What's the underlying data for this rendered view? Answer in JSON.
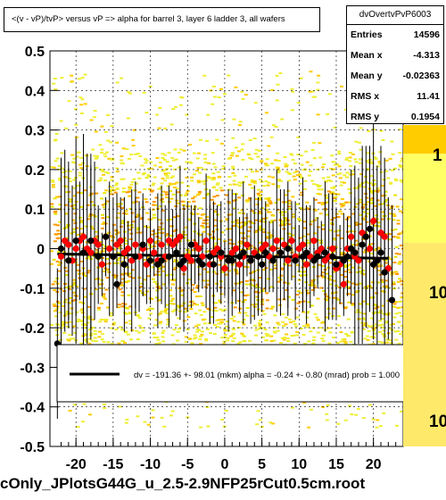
{
  "title": "<(v - vP)/tvP> versus   vP => alpha for barrel 3, layer 6 ladder 3, all wafers",
  "bottom_title": "cOnly_JPlotsG44G_u_2.5-2.9NFP25rCut0.5cm.root",
  "stats": {
    "name": "dvOvertvPvP6003",
    "rows": [
      {
        "key": "Entries",
        "value": "14596"
      },
      {
        "key": "Mean x",
        "value": "-4.313"
      },
      {
        "key": "Mean y",
        "value": "-0.02363"
      },
      {
        "key": "RMS x",
        "value": "11.41"
      },
      {
        "key": "RMS y",
        "value": "0.1954"
      }
    ]
  },
  "legend": {
    "text": "dv = -191.36 +- 98.01 (mkm) alpha =   -0.24 +-  0.80 (mrad) prob = 1.000"
  },
  "colorbar_labels": [
    "1",
    "10",
    "10"
  ],
  "chart_data": {
    "type": "scatter",
    "title": "<(v - vP)/tvP> versus   vP => alpha for barrel 3, layer 6 ladder 3, all wafers",
    "xlim": [
      -23.5,
      24
    ],
    "ylim": [
      -0.5,
      0.5
    ],
    "x_ticks": [
      -20,
      -15,
      -10,
      -5,
      0,
      5,
      10,
      15,
      20
    ],
    "y_ticks": [
      -0.5,
      -0.4,
      -0.3,
      -0.2,
      -0.1,
      0,
      0.1,
      0.2,
      0.3,
      0.4,
      0.5
    ],
    "y_tick_labels": [
      "-0.5",
      "-0.4",
      "-0.3",
      "-0.2",
      "-0.1",
      "0",
      "0.1",
      "0.2",
      "0.3",
      "0.4",
      "0.5"
    ],
    "grid": true,
    "colors": {
      "red": "#ff0000",
      "black": "#000000",
      "fit": "#000000"
    },
    "fit_line": {
      "slope": -0.00024,
      "intercept": -0.019
    },
    "series": [
      {
        "marker": "red",
        "points": [
          [
            -22.0,
            -0.02
          ],
          [
            -21.5,
            0.02
          ],
          [
            -21.0,
            0.01
          ],
          [
            -20.5,
            -0.03
          ],
          [
            -20.0,
            0.0
          ],
          [
            -19.5,
            0.02
          ],
          [
            -19.0,
            0.03
          ],
          [
            -18.5,
            0.0
          ],
          [
            -18.0,
            -0.01
          ],
          [
            -17.5,
            0.02
          ],
          [
            -17.0,
            0.01
          ],
          [
            -16.5,
            -0.04
          ],
          [
            -16.0,
            0.03
          ],
          [
            -15.5,
            0.0
          ],
          [
            -15.0,
            -0.02
          ],
          [
            -14.5,
            0.01
          ],
          [
            -14.0,
            0.02
          ],
          [
            -13.5,
            -0.01
          ],
          [
            -13.0,
            0.0
          ],
          [
            -12.5,
            -0.03
          ],
          [
            -12.0,
            0.01
          ],
          [
            -11.5,
            -0.02
          ],
          [
            -11.0,
            0.0
          ],
          [
            -10.5,
            -0.04
          ],
          [
            -10.0,
            0.02
          ],
          [
            -9.5,
            -0.01
          ],
          [
            -9.0,
            -0.03
          ],
          [
            -8.5,
            0.01
          ],
          [
            -8.0,
            -0.02
          ],
          [
            -7.5,
            0.02
          ],
          [
            -7.0,
            0.01
          ],
          [
            -6.5,
            0.02
          ],
          [
            -6.0,
            0.03
          ],
          [
            -5.5,
            -0.05
          ],
          [
            -5.0,
            -0.02
          ],
          [
            -4.5,
            -0.03
          ],
          [
            -4.0,
            0.01
          ],
          [
            -3.5,
            0.0
          ],
          [
            -3.0,
            -0.02
          ],
          [
            -2.5,
            0.02
          ],
          [
            -2.0,
            -0.04
          ],
          [
            -1.5,
            -0.01
          ],
          [
            -1.0,
            0.0
          ],
          [
            -0.5,
            -0.02
          ],
          [
            0.0,
            -0.05
          ],
          [
            0.5,
            -0.03
          ],
          [
            1.0,
            -0.01
          ],
          [
            1.5,
            0.0
          ],
          [
            2.0,
            -0.04
          ],
          [
            2.5,
            -0.02
          ],
          [
            3.0,
            0.01
          ],
          [
            3.5,
            -0.03
          ],
          [
            4.0,
            -0.01
          ],
          [
            4.5,
            -0.02
          ],
          [
            5.0,
            0.0
          ],
          [
            5.5,
            0.01
          ],
          [
            6.0,
            -0.02
          ],
          [
            6.5,
            0.0
          ],
          [
            7.0,
            0.02
          ],
          [
            7.5,
            -0.01
          ],
          [
            8.0,
            0.01
          ],
          [
            8.5,
            -0.03
          ],
          [
            9.0,
            0.02
          ],
          [
            9.5,
            -0.02
          ],
          [
            10.0,
            0.0
          ],
          [
            10.5,
            0.01
          ],
          [
            11.0,
            -0.04
          ],
          [
            11.5,
            -0.02
          ],
          [
            12.0,
            0.02
          ],
          [
            12.5,
            -0.01
          ],
          [
            13.0,
            0.0
          ],
          [
            13.5,
            -0.03
          ],
          [
            14.0,
            -0.02
          ],
          [
            14.5,
            0.0
          ],
          [
            15.0,
            -0.05
          ],
          [
            15.5,
            -0.04
          ],
          [
            16.0,
            -0.09
          ],
          [
            16.5,
            0.0
          ],
          [
            17.0,
            0.03
          ],
          [
            17.5,
            -0.02
          ],
          [
            18.0,
            -0.03
          ],
          [
            18.5,
            0.04
          ],
          [
            19.0,
            0.03
          ],
          [
            19.5,
            0.0
          ],
          [
            20.0,
            0.07
          ],
          [
            20.5,
            -0.03
          ],
          [
            21.0,
            0.04
          ],
          [
            21.5,
            0.03
          ],
          [
            22.0,
            -0.05
          ]
        ]
      },
      {
        "marker": "black",
        "points": [
          [
            -22.5,
            -0.24
          ],
          [
            -22.0,
            0.0
          ],
          [
            -21.0,
            -0.03
          ],
          [
            -20.0,
            0.02
          ],
          [
            -19.0,
            -0.01
          ],
          [
            -18.0,
            0.02
          ],
          [
            -17.0,
            -0.02
          ],
          [
            -16.0,
            0.03
          ],
          [
            -15.0,
            -0.02
          ],
          [
            -14.5,
            -0.09
          ],
          [
            -13.5,
            -0.04
          ],
          [
            -12.0,
            -0.02
          ],
          [
            -11.0,
            0.01
          ],
          [
            -10.0,
            -0.03
          ],
          [
            -9.0,
            -0.04
          ],
          [
            -8.5,
            -0.03
          ],
          [
            -7.5,
            -0.02
          ],
          [
            -6.5,
            -0.01
          ],
          [
            -6.0,
            -0.04
          ],
          [
            -5.5,
            -0.03
          ],
          [
            -4.5,
            0.01
          ],
          [
            -3.5,
            -0.03
          ],
          [
            -3.0,
            -0.04
          ],
          [
            -2.0,
            -0.02
          ],
          [
            -1.5,
            -0.04
          ],
          [
            -0.5,
            -0.01
          ],
          [
            0.5,
            -0.03
          ],
          [
            1.0,
            -0.03
          ],
          [
            2.0,
            -0.02
          ],
          [
            2.5,
            -0.01
          ],
          [
            3.5,
            -0.03
          ],
          [
            4.5,
            -0.02
          ],
          [
            5.0,
            -0.04
          ],
          [
            5.5,
            -0.01
          ],
          [
            6.5,
            -0.03
          ],
          [
            7.5,
            -0.01
          ],
          [
            8.5,
            0.0
          ],
          [
            9.5,
            -0.03
          ],
          [
            10.5,
            -0.02
          ],
          [
            11.0,
            -0.01
          ],
          [
            12.0,
            -0.03
          ],
          [
            12.5,
            -0.02
          ],
          [
            13.5,
            -0.01
          ],
          [
            14.5,
            -0.02
          ],
          [
            15.0,
            -0.04
          ],
          [
            16.0,
            -0.03
          ],
          [
            16.5,
            -0.02
          ],
          [
            17.0,
            0.0
          ],
          [
            17.5,
            -0.01
          ],
          [
            18.5,
            0.01
          ],
          [
            19.0,
            0.03
          ],
          [
            19.5,
            0.05
          ],
          [
            20.0,
            -0.04
          ],
          [
            20.5,
            -0.03
          ],
          [
            21.0,
            -0.01
          ],
          [
            21.5,
            -0.06
          ],
          [
            22.5,
            -0.13
          ]
        ]
      }
    ]
  }
}
